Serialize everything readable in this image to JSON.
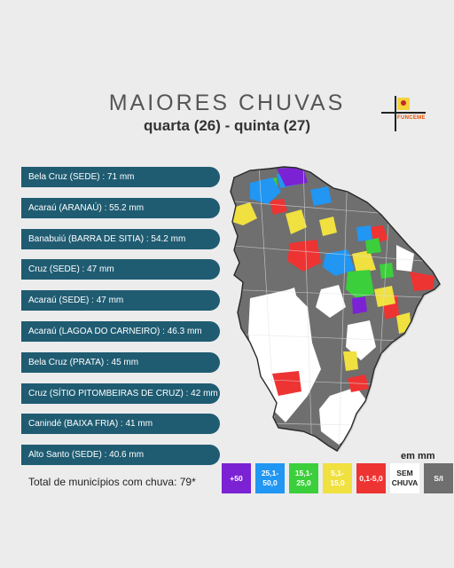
{
  "header": {
    "title": "MAIORES CHUVAS",
    "subtitle": "quarta (26) - quinta (27)",
    "logo_text": "FUNCEME"
  },
  "ranking": [
    {
      "text": "Bela Cruz (SEDE) : 71 mm"
    },
    {
      "text": "Acaraú (ARANAÚ) : 55.2 mm"
    },
    {
      "text": "Banabuiú (BARRA DE SITIA) : 54.2 mm"
    },
    {
      "text": "Cruz (SEDE) : 47 mm"
    },
    {
      "text": "Acaraú (SEDE) : 47 mm"
    },
    {
      "text": "Acaraú (LAGOA DO CARNEIRO) : 46.3 mm"
    },
    {
      "text": "Bela Cruz (PRATA) : 45 mm"
    },
    {
      "text": "Cruz (SÍTIO PITOMBEIRAS DE CRUZ) : 42 mm"
    },
    {
      "text": "Canindé (BAIXA FRIA) : 41 mm"
    },
    {
      "text": "Alto Santo (SEDE) : 40.6 mm"
    }
  ],
  "footer": {
    "unit": "em mm",
    "total": "Total de municípios com chuva: 79*"
  },
  "legend": [
    {
      "label": "+50",
      "color": "#7b22d4",
      "text_color": "#ffffff"
    },
    {
      "label": "25,1-50,0",
      "color": "#2196f3",
      "text_color": "#ffffff"
    },
    {
      "label": "15,1-25,0",
      "color": "#3ccf3c",
      "text_color": "#ffffff"
    },
    {
      "label": "5,1-15,0",
      "color": "#f0e040",
      "text_color": "#ffffff"
    },
    {
      "label": "0,1-5,0",
      "color": "#ee3333",
      "text_color": "#ffffff"
    },
    {
      "label": "SEM CHUVA",
      "color": "#ffffff",
      "text_color": "#222222"
    },
    {
      "label": "S/I",
      "color": "#6f6f6f",
      "text_color": "#ffffff"
    }
  ]
}
